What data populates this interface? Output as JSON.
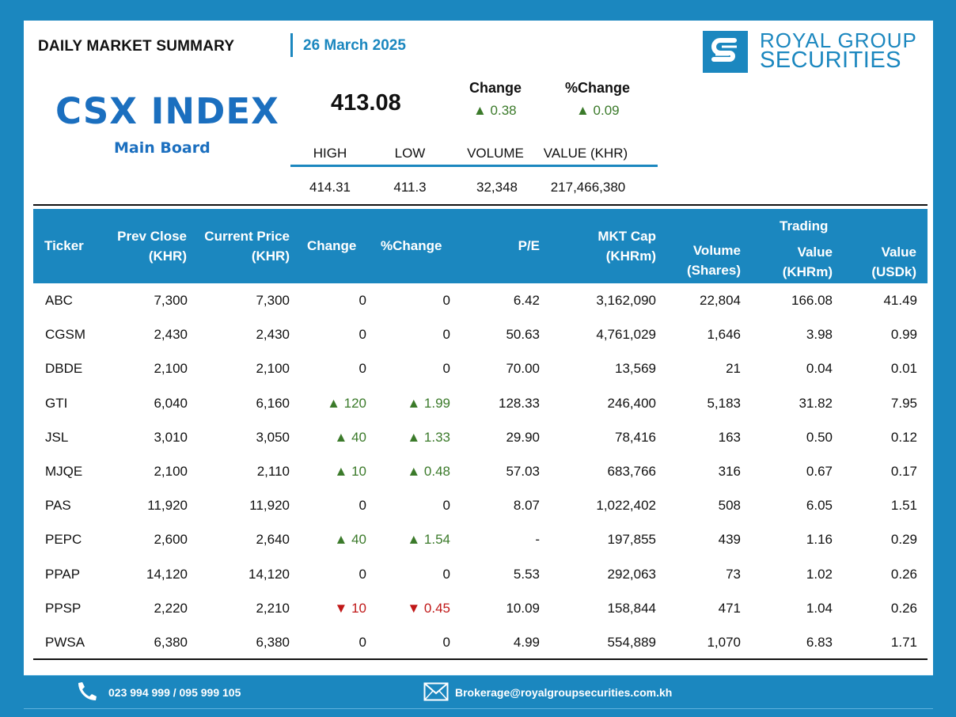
{
  "header": {
    "title": "DAILY MARKET SUMMARY",
    "date": "26 March 2025",
    "logo_line1": "ROYAL GROUP",
    "logo_line2": "SECURITIES"
  },
  "index": {
    "name": "CSX INDEX",
    "board": "Main Board",
    "value": "413.08",
    "change_label": "Change",
    "change_value": "▲ 0.38",
    "pct_change_label": "%Change",
    "pct_change_value": "▲ 0.09",
    "stats_headers": [
      "HIGH",
      "LOW",
      "VOLUME",
      "VALUE (KHR)"
    ],
    "stats_values": [
      "414.31",
      "411.3",
      "32,348",
      "217,466,380"
    ]
  },
  "table": {
    "headers": {
      "ticker": "Ticker",
      "prev_close_1": "Prev Close",
      "prev_close_2": "(KHR)",
      "current_1": "Current Price",
      "current_2": "(KHR)",
      "change": "Change",
      "pct_change": "%Change",
      "pe": "P/E",
      "mktcap_1": "MKT Cap",
      "mktcap_2": "(KHRm)",
      "volume_1": "Volume",
      "volume_2": "(Shares)",
      "trading": "Trading",
      "tvalue_1": "Value",
      "tvalue_2": "(KHRm)",
      "usd_1": "Value",
      "usd_2": "(USDk)"
    },
    "rows": [
      {
        "ticker": "ABC",
        "prev": "7,300",
        "cur": "7,300",
        "chg": "0",
        "pct": "0",
        "dir": "flat",
        "pe": "6.42",
        "mkt": "3,162,090",
        "vol": "22,804",
        "val": "166.08",
        "usd": "41.49"
      },
      {
        "ticker": "CGSM",
        "prev": "2,430",
        "cur": "2,430",
        "chg": "0",
        "pct": "0",
        "dir": "flat",
        "pe": "50.63",
        "mkt": "4,761,029",
        "vol": "1,646",
        "val": "3.98",
        "usd": "0.99"
      },
      {
        "ticker": "DBDE",
        "prev": "2,100",
        "cur": "2,100",
        "chg": "0",
        "pct": "0",
        "dir": "flat",
        "pe": "70.00",
        "mkt": "13,569",
        "vol": "21",
        "val": "0.04",
        "usd": "0.01"
      },
      {
        "ticker": "GTI",
        "prev": "6,040",
        "cur": "6,160",
        "chg": "▲ 120",
        "pct": "▲ 1.99",
        "dir": "up",
        "pe": "128.33",
        "mkt": "246,400",
        "vol": "5,183",
        "val": "31.82",
        "usd": "7.95"
      },
      {
        "ticker": "JSL",
        "prev": "3,010",
        "cur": "3,050",
        "chg": "▲ 40",
        "pct": "▲ 1.33",
        "dir": "up",
        "pe": "29.90",
        "mkt": "78,416",
        "vol": "163",
        "val": "0.50",
        "usd": "0.12"
      },
      {
        "ticker": "MJQE",
        "prev": "2,100",
        "cur": "2,110",
        "chg": "▲ 10",
        "pct": "▲ 0.48",
        "dir": "up",
        "pe": "57.03",
        "mkt": "683,766",
        "vol": "316",
        "val": "0.67",
        "usd": "0.17"
      },
      {
        "ticker": "PAS",
        "prev": "11,920",
        "cur": "11,920",
        "chg": "0",
        "pct": "0",
        "dir": "flat",
        "pe": "8.07",
        "mkt": "1,022,402",
        "vol": "508",
        "val": "6.05",
        "usd": "1.51"
      },
      {
        "ticker": "PEPC",
        "prev": "2,600",
        "cur": "2,640",
        "chg": "▲ 40",
        "pct": "▲ 1.54",
        "dir": "up",
        "pe": "-",
        "mkt": "197,855",
        "vol": "439",
        "val": "1.16",
        "usd": "0.29"
      },
      {
        "ticker": "PPAP",
        "prev": "14,120",
        "cur": "14,120",
        "chg": "0",
        "pct": "0",
        "dir": "flat",
        "pe": "5.53",
        "mkt": "292,063",
        "vol": "73",
        "val": "1.02",
        "usd": "0.26"
      },
      {
        "ticker": "PPSP",
        "prev": "2,220",
        "cur": "2,210",
        "chg": "▼ 10",
        "pct": "▼ 0.45",
        "dir": "down",
        "pe": "10.09",
        "mkt": "158,844",
        "vol": "471",
        "val": "1.04",
        "usd": "0.26"
      },
      {
        "ticker": "PWSA",
        "prev": "6,380",
        "cur": "6,380",
        "chg": "0",
        "pct": "0",
        "dir": "flat",
        "pe": "4.99",
        "mkt": "554,889",
        "vol": "1,070",
        "val": "6.83",
        "usd": "1.71"
      }
    ]
  },
  "footer": {
    "phone": "023 994 999 / 095 999 105",
    "email": "Brokerage@royalgroupsecurities.com.kh"
  },
  "colors": {
    "brand_blue": "#1b87bf",
    "up_green": "#3b7a2a",
    "down_red": "#c01818"
  }
}
